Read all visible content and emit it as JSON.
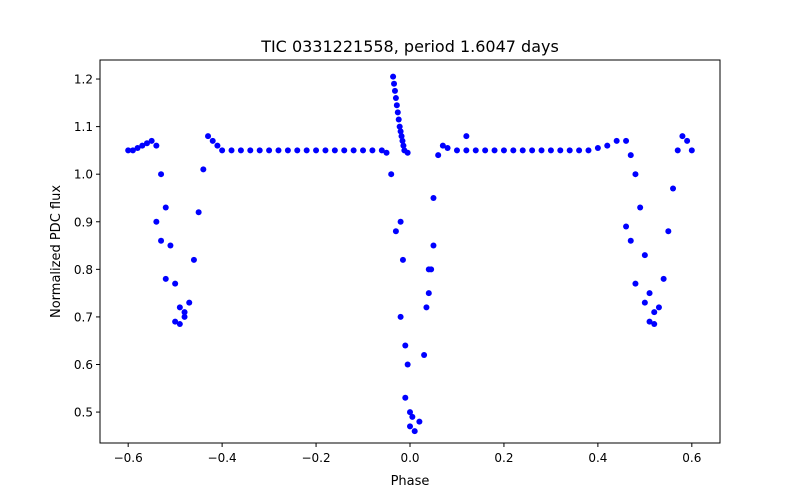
{
  "chart_data": {
    "type": "scatter",
    "title": "TIC 0331221558, period 1.6047 days",
    "xlabel": "Phase",
    "ylabel": "Normalized PDC flux",
    "xlim": [
      -0.66,
      0.66
    ],
    "ylim": [
      0.435,
      1.24
    ],
    "xticks": [
      -0.6,
      -0.4,
      -0.2,
      0.0,
      0.2,
      0.4,
      0.6
    ],
    "xtick_labels": [
      "−0.6",
      "−0.4",
      "−0.2",
      "0.0",
      "0.2",
      "0.4",
      "0.6"
    ],
    "yticks": [
      0.5,
      0.6,
      0.7,
      0.8,
      0.9,
      1.0,
      1.1,
      1.2
    ],
    "ytick_labels": [
      "0.5",
      "0.6",
      "0.7",
      "0.8",
      "0.9",
      "1.0",
      "1.1",
      "1.2"
    ],
    "grid": false,
    "legend": "none",
    "marker_color": "#0000ff",
    "series": [
      {
        "x": [
          -0.6,
          -0.59,
          -0.58,
          -0.57,
          -0.56,
          -0.55,
          -0.54,
          -0.53,
          -0.52,
          -0.51,
          -0.5,
          -0.49,
          -0.48,
          -0.47,
          -0.46,
          -0.45,
          -0.44,
          -0.43,
          -0.42,
          -0.41,
          -0.4,
          -0.38,
          -0.36,
          -0.34,
          -0.32,
          -0.3,
          -0.28,
          -0.26,
          -0.24,
          -0.22,
          -0.2,
          -0.18,
          -0.16,
          -0.14,
          -0.12,
          -0.1,
          -0.08,
          -0.06,
          -0.05,
          -0.04,
          -0.03,
          -0.02,
          -0.01,
          0.0,
          0.01,
          0.02,
          0.03,
          0.04,
          0.05,
          0.06,
          0.07,
          0.08,
          0.1,
          0.12,
          0.14,
          0.16,
          0.18,
          0.2,
          0.22,
          0.24,
          0.26,
          0.28,
          0.3,
          0.32,
          0.34,
          0.36,
          0.38,
          0.4,
          0.42,
          0.44,
          0.46,
          0.47,
          0.48,
          0.49,
          0.5,
          0.51,
          0.52,
          0.53,
          0.54,
          0.55,
          0.56,
          0.57,
          0.58,
          0.59,
          0.6
        ],
        "y": [
          1.05,
          1.05,
          1.055,
          1.06,
          1.065,
          1.07,
          1.06,
          1.0,
          0.93,
          0.85,
          0.77,
          0.72,
          0.71,
          0.73,
          0.82,
          0.92,
          1.01,
          1.08,
          1.07,
          1.06,
          1.05,
          1.05,
          1.05,
          1.05,
          1.05,
          1.05,
          1.05,
          1.05,
          1.05,
          1.05,
          1.05,
          1.05,
          1.05,
          1.05,
          1.05,
          1.05,
          1.05,
          1.05,
          1.045,
          1.0,
          0.88,
          0.7,
          0.53,
          0.47,
          0.46,
          0.48,
          0.62,
          0.8,
          0.95,
          1.04,
          1.06,
          1.055,
          1.05,
          1.05,
          1.05,
          1.05,
          1.05,
          1.05,
          1.05,
          1.05,
          1.05,
          1.05,
          1.05,
          1.05,
          1.05,
          1.05,
          1.05,
          1.055,
          1.06,
          1.07,
          1.07,
          1.04,
          1.0,
          0.93,
          0.83,
          0.75,
          0.71,
          0.72,
          0.78,
          0.88,
          0.97,
          1.05,
          1.08,
          1.07,
          1.05
        ]
      },
      {
        "x": [
          -0.036,
          -0.034,
          -0.032,
          -0.03,
          -0.028,
          -0.026,
          -0.024,
          -0.022,
          -0.02,
          -0.018,
          -0.016,
          -0.014,
          -0.012,
          -0.005,
          0.12
        ],
        "y": [
          1.205,
          1.19,
          1.175,
          1.16,
          1.145,
          1.13,
          1.115,
          1.1,
          1.09,
          1.08,
          1.07,
          1.06,
          1.05,
          1.045,
          1.08
        ]
      },
      {
        "x": [
          -0.5,
          -0.49,
          -0.48,
          -0.52,
          -0.53,
          -0.54,
          0.48,
          0.5,
          0.51,
          0.52,
          0.47,
          0.46,
          -0.01,
          -0.005,
          0.0,
          0.005,
          0.035,
          0.04,
          0.045,
          0.05,
          -0.02,
          -0.015
        ],
        "y": [
          0.69,
          0.685,
          0.7,
          0.78,
          0.86,
          0.9,
          0.77,
          0.73,
          0.69,
          0.685,
          0.86,
          0.89,
          0.64,
          0.6,
          0.5,
          0.49,
          0.72,
          0.75,
          0.8,
          0.85,
          0.9,
          0.82
        ]
      }
    ]
  }
}
